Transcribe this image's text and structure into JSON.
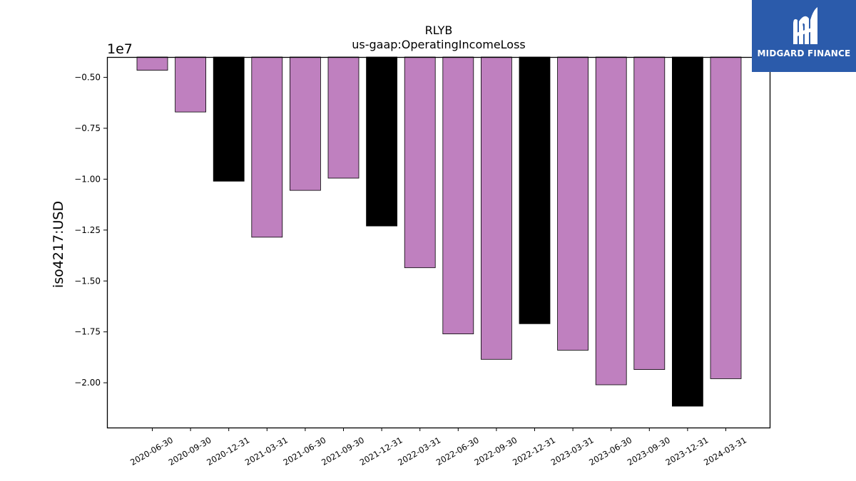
{
  "chart_data": {
    "type": "bar",
    "title": "RLYB",
    "subtitle": "us-gaap:OperatingIncomeLoss",
    "ylabel": "iso4217:USD",
    "xlabel": "",
    "offset_label": "1e7",
    "scale": 10000000,
    "ylim": [
      -2.22,
      -0.4
    ],
    "yticks": [
      -0.5,
      -0.75,
      -1.0,
      -1.25,
      -1.5,
      -1.75,
      -2.0
    ],
    "ytick_labels": [
      "−0.50",
      "−0.75",
      "−1.00",
      "−1.25",
      "−1.50",
      "−1.75",
      "−2.00"
    ],
    "grid": false,
    "categories": [
      "2020-06-30",
      "2020-09-30",
      "2020-12-31",
      "2021-03-31",
      "2021-06-30",
      "2021-09-30",
      "2021-12-31",
      "2022-03-31",
      "2022-06-30",
      "2022-09-30",
      "2022-12-31",
      "2023-03-31",
      "2023-06-30",
      "2023-09-30",
      "2023-12-31",
      "2024-03-31"
    ],
    "values": [
      -4650000,
      -6700000,
      -10100000,
      -12850000,
      -10550000,
      -9950000,
      -12300000,
      -14350000,
      -17600000,
      -18850000,
      -17100000,
      -18400000,
      -20100000,
      -19350000,
      -21150000,
      -19800000
    ],
    "bar_colors": [
      "#bf80bf",
      "#bf80bf",
      "#000000",
      "#bf80bf",
      "#bf80bf",
      "#bf80bf",
      "#000000",
      "#bf80bf",
      "#bf80bf",
      "#bf80bf",
      "#000000",
      "#bf80bf",
      "#bf80bf",
      "#bf80bf",
      "#000000",
      "#bf80bf"
    ]
  },
  "logo": {
    "text": "MIDGARD FINANCE",
    "background": "#2b5bab",
    "icon": "midgard-logo-icon"
  }
}
